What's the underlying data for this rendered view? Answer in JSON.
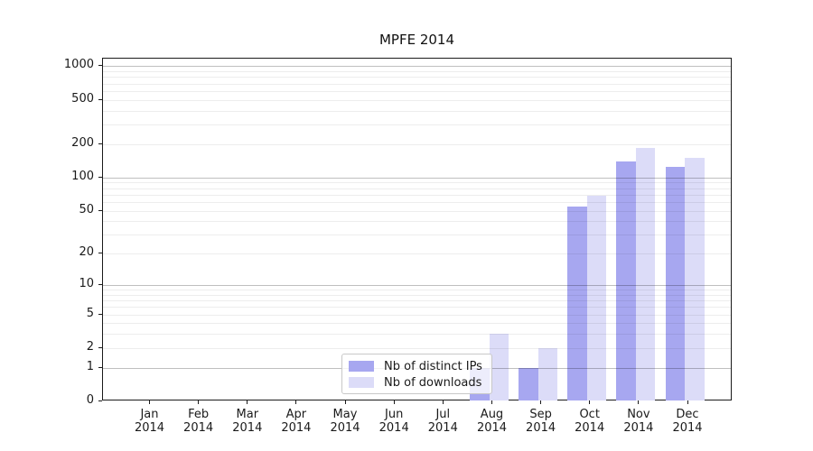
{
  "chart_data": {
    "type": "bar",
    "title": "MPFE 2014",
    "categories": [
      "Jan",
      "Feb",
      "Mar",
      "Apr",
      "May",
      "Jun",
      "Jul",
      "Aug",
      "Sep",
      "Oct",
      "Nov",
      "Dec"
    ],
    "year_label": "2014",
    "series": [
      {
        "name": "Nb of distinct IPs",
        "color": "#a7a7f0",
        "values": [
          0,
          0,
          0,
          0,
          0,
          0,
          0,
          1,
          1,
          55,
          140,
          125
        ]
      },
      {
        "name": "Nb of downloads",
        "color": "#dcdcf8",
        "values": [
          0,
          0,
          0,
          0,
          0,
          0,
          0,
          3,
          2,
          68,
          185,
          150
        ]
      }
    ],
    "y_ticks": [
      0,
      1,
      2,
      5,
      10,
      20,
      50,
      100,
      200,
      500,
      1000
    ],
    "scale": "log1p",
    "ylim": [
      0,
      1170
    ],
    "xlabel": "",
    "ylabel": "",
    "grid": "both",
    "grid_over_bars": true,
    "legend_position": "lower center inside",
    "colors": {
      "major_grid": "rgba(0,0,0,0.25)",
      "minor_grid": "rgba(0,0,0,0.07)",
      "axis": "#1a1a1a",
      "background": "#ffffff"
    }
  }
}
